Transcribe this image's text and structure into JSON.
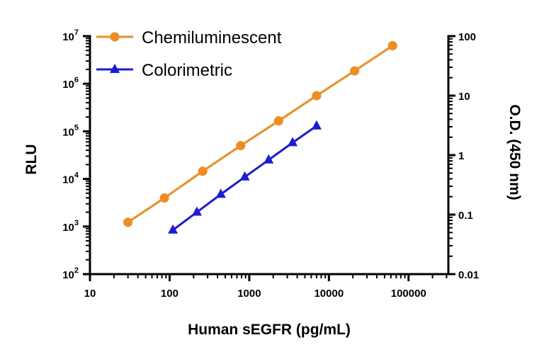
{
  "chart_data": {
    "type": "line",
    "xlabel": "Human sEGFR (pg/mL)",
    "ylabel_left": "RLU",
    "ylabel_right": "O.D. (450 nm)",
    "x_scale": "log",
    "y_left_scale": "log",
    "y_right_scale": "log",
    "xlim": [
      10,
      316228
    ],
    "ylim_left": [
      100,
      10000000
    ],
    "ylim_right": [
      0.01,
      100
    ],
    "x_ticks": [
      "10",
      "100",
      "1000",
      "10000",
      "100000"
    ],
    "y_left_ticks": [
      {
        "base": "10",
        "exp": "2"
      },
      {
        "base": "10",
        "exp": "3"
      },
      {
        "base": "10",
        "exp": "4"
      },
      {
        "base": "10",
        "exp": "5"
      },
      {
        "base": "10",
        "exp": "6"
      },
      {
        "base": "10",
        "exp": "7"
      }
    ],
    "y_right_ticks": [
      "0.01",
      "0.1",
      "1",
      "10",
      "100"
    ],
    "grid": false,
    "legend_position": "top-left",
    "series": [
      {
        "name": "Chemiluminescent",
        "axis": "left",
        "marker": "circle",
        "color": "#F28C1E",
        "x": [
          30,
          86,
          260,
          780,
          2340,
          7000,
          21000,
          63000
        ],
        "y": [
          1230,
          3980,
          14500,
          50100,
          166000,
          560000,
          1860000,
          6300000
        ]
      },
      {
        "name": "Colorimetric",
        "axis": "right",
        "marker": "triangle",
        "color": "#1A1AE6",
        "x": [
          110,
          220,
          440,
          880,
          1750,
          3500,
          7000
        ],
        "y": [
          0.055,
          0.11,
          0.22,
          0.43,
          0.83,
          1.62,
          3.1
        ]
      }
    ]
  }
}
